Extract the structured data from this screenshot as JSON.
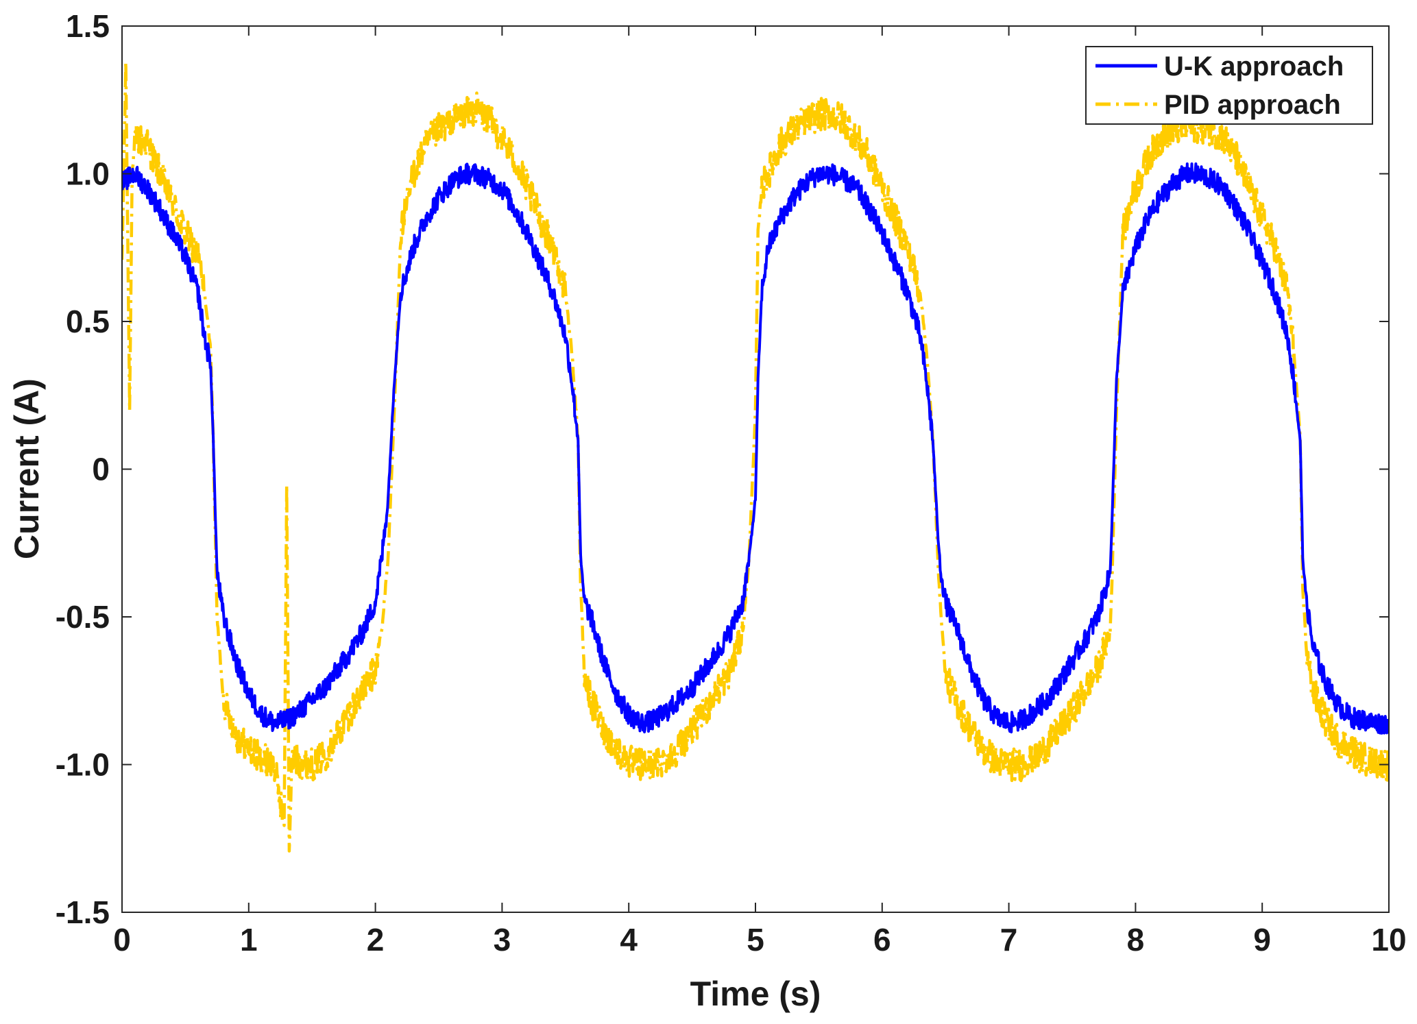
{
  "chart_data": {
    "type": "line",
    "title": "",
    "xlabel": "Time (s)",
    "ylabel": "Current (A)",
    "xlim": [
      0,
      10
    ],
    "ylim": [
      -1.5,
      1.5
    ],
    "xticks": [
      0,
      1,
      2,
      3,
      4,
      5,
      6,
      7,
      8,
      9,
      10
    ],
    "xtick_labels": [
      "0",
      "1",
      "2",
      "3",
      "4",
      "5",
      "6",
      "7",
      "8",
      "9",
      "10"
    ],
    "yticks": [
      -1.5,
      -1.0,
      -0.5,
      0,
      0.5,
      1.0,
      1.5
    ],
    "ytick_labels": [
      "-1.5",
      "-1.0",
      "-0.5",
      "0",
      "0.5",
      "1.0",
      "1.5"
    ],
    "grid": false,
    "legend_position": "top-right",
    "series": [
      {
        "name": "U-K approach",
        "color": "#0000ff",
        "style": "solid",
        "x": [
          0,
          0.1,
          0.2,
          0.3,
          0.4,
          0.5,
          0.6,
          0.65,
          0.7,
          0.72,
          0.75,
          0.8,
          0.9,
          1.0,
          1.1,
          1.2,
          1.3,
          1.4,
          1.5,
          1.6,
          1.7,
          1.8,
          1.9,
          2.0,
          2.05,
          2.1,
          2.15,
          2.2,
          2.3,
          2.4,
          2.5,
          2.6,
          2.7,
          2.8,
          2.9,
          3.0,
          3.1,
          3.2,
          3.3,
          3.4,
          3.5,
          3.55,
          3.6,
          3.62,
          3.65,
          3.7,
          3.8,
          3.9,
          4.0,
          4.1,
          4.2,
          4.3,
          4.4,
          4.5,
          4.6,
          4.7,
          4.8,
          4.9,
          4.95,
          5.0,
          5.02,
          5.05,
          5.1,
          5.2,
          5.3,
          5.4,
          5.5,
          5.6,
          5.7,
          5.8,
          5.9,
          6.0,
          6.1,
          6.2,
          6.3,
          6.35,
          6.4,
          6.45,
          6.5,
          6.6,
          6.7,
          6.8,
          6.9,
          7.0,
          7.1,
          7.2,
          7.3,
          7.4,
          7.5,
          7.6,
          7.7,
          7.8,
          7.82,
          7.85,
          7.9,
          8.0,
          8.1,
          8.2,
          8.3,
          8.4,
          8.5,
          8.6,
          8.7,
          8.8,
          8.9,
          9.0,
          9.1,
          9.2,
          9.25,
          9.3,
          9.32,
          9.35,
          9.4,
          9.5,
          9.6,
          9.7,
          9.8,
          9.9,
          10.0
        ],
        "y": [
          0.97,
          1.0,
          0.95,
          0.88,
          0.8,
          0.72,
          0.6,
          0.45,
          0.35,
          0.1,
          -0.35,
          -0.5,
          -0.65,
          -0.76,
          -0.83,
          -0.86,
          -0.85,
          -0.82,
          -0.78,
          -0.74,
          -0.68,
          -0.62,
          -0.55,
          -0.45,
          -0.3,
          -0.1,
          0.3,
          0.6,
          0.75,
          0.85,
          0.92,
          0.97,
          1.0,
          1.0,
          0.98,
          0.95,
          0.88,
          0.8,
          0.7,
          0.6,
          0.45,
          0.3,
          0.1,
          -0.3,
          -0.45,
          -0.5,
          -0.65,
          -0.76,
          -0.83,
          -0.86,
          -0.85,
          -0.82,
          -0.78,
          -0.74,
          -0.68,
          -0.62,
          -0.55,
          -0.45,
          -0.3,
          -0.1,
          0.3,
          0.6,
          0.75,
          0.85,
          0.92,
          0.97,
          1.0,
          1.0,
          0.98,
          0.95,
          0.88,
          0.8,
          0.7,
          0.6,
          0.45,
          0.3,
          0.1,
          -0.3,
          -0.45,
          -0.55,
          -0.68,
          -0.78,
          -0.84,
          -0.86,
          -0.85,
          -0.82,
          -0.78,
          -0.72,
          -0.65,
          -0.58,
          -0.5,
          -0.35,
          -0.1,
          0.3,
          0.6,
          0.75,
          0.85,
          0.92,
          0.97,
          1.0,
          1.0,
          0.98,
          0.95,
          0.88,
          0.8,
          0.7,
          0.6,
          0.45,
          0.3,
          0.1,
          -0.3,
          -0.45,
          -0.6,
          -0.72,
          -0.8,
          -0.84,
          -0.85,
          -0.86,
          -0.86
        ]
      },
      {
        "name": "PID approach",
        "color": "#ffcc00",
        "style": "dashdot",
        "x": [
          0,
          0.03,
          0.06,
          0.08,
          0.1,
          0.12,
          0.2,
          0.3,
          0.4,
          0.5,
          0.6,
          0.65,
          0.7,
          0.72,
          0.75,
          0.8,
          0.9,
          1.0,
          1.1,
          1.2,
          1.28,
          1.3,
          1.32,
          1.34,
          1.36,
          1.4,
          1.5,
          1.6,
          1.7,
          1.8,
          1.9,
          2.0,
          2.05,
          2.1,
          2.15,
          2.2,
          2.3,
          2.4,
          2.5,
          2.6,
          2.7,
          2.8,
          2.9,
          3.0,
          3.1,
          3.2,
          3.3,
          3.4,
          3.5,
          3.55,
          3.6,
          3.62,
          3.65,
          3.7,
          3.8,
          3.9,
          4.0,
          4.1,
          4.2,
          4.3,
          4.4,
          4.5,
          4.6,
          4.7,
          4.8,
          4.9,
          4.95,
          5.0,
          5.02,
          5.05,
          5.1,
          5.2,
          5.3,
          5.4,
          5.5,
          5.6,
          5.7,
          5.8,
          5.9,
          6.0,
          6.1,
          6.2,
          6.3,
          6.35,
          6.4,
          6.45,
          6.5,
          6.6,
          6.7,
          6.8,
          6.9,
          7.0,
          7.1,
          7.2,
          7.3,
          7.4,
          7.5,
          7.6,
          7.7,
          7.8,
          7.82,
          7.85,
          7.9,
          8.0,
          8.1,
          8.2,
          8.3,
          8.4,
          8.5,
          8.6,
          8.7,
          8.8,
          8.9,
          9.0,
          9.1,
          9.2,
          9.25,
          9.3,
          9.32,
          9.35,
          9.4,
          9.5,
          9.6,
          9.7,
          9.8,
          9.9,
          10.0
        ],
        "y": [
          0.7,
          1.38,
          0.2,
          1.0,
          1.1,
          1.12,
          1.1,
          1.0,
          0.9,
          0.8,
          0.72,
          0.6,
          0.4,
          0.1,
          -0.5,
          -0.78,
          -0.9,
          -0.95,
          -0.98,
          -1.0,
          -1.2,
          -0.05,
          -1.3,
          -1.0,
          -0.98,
          -0.99,
          -1.0,
          -0.97,
          -0.9,
          -0.82,
          -0.75,
          -0.68,
          -0.55,
          -0.3,
          0.2,
          0.8,
          1.0,
          1.1,
          1.15,
          1.18,
          1.2,
          1.22,
          1.18,
          1.12,
          1.05,
          0.95,
          0.85,
          0.75,
          0.6,
          0.4,
          0.1,
          -0.4,
          -0.7,
          -0.78,
          -0.88,
          -0.95,
          -0.99,
          -1.0,
          -1.0,
          -0.98,
          -0.94,
          -0.88,
          -0.82,
          -0.75,
          -0.68,
          -0.55,
          -0.3,
          0.2,
          0.8,
          0.95,
          1.0,
          1.1,
          1.15,
          1.18,
          1.2,
          1.2,
          1.18,
          1.12,
          1.05,
          0.95,
          0.85,
          0.75,
          0.6,
          0.4,
          0.1,
          -0.4,
          -0.7,
          -0.8,
          -0.88,
          -0.95,
          -0.99,
          -1.0,
          -1.0,
          -0.98,
          -0.94,
          -0.88,
          -0.82,
          -0.75,
          -0.68,
          -0.55,
          -0.3,
          0.2,
          0.8,
          0.95,
          1.05,
          1.12,
          1.15,
          1.16,
          1.16,
          1.15,
          1.12,
          1.05,
          0.95,
          0.85,
          0.75,
          0.6,
          0.4,
          0.1,
          -0.4,
          -0.62,
          -0.75,
          -0.85,
          -0.92,
          -0.95,
          -0.98,
          -0.99,
          -1.0
        ]
      }
    ]
  }
}
